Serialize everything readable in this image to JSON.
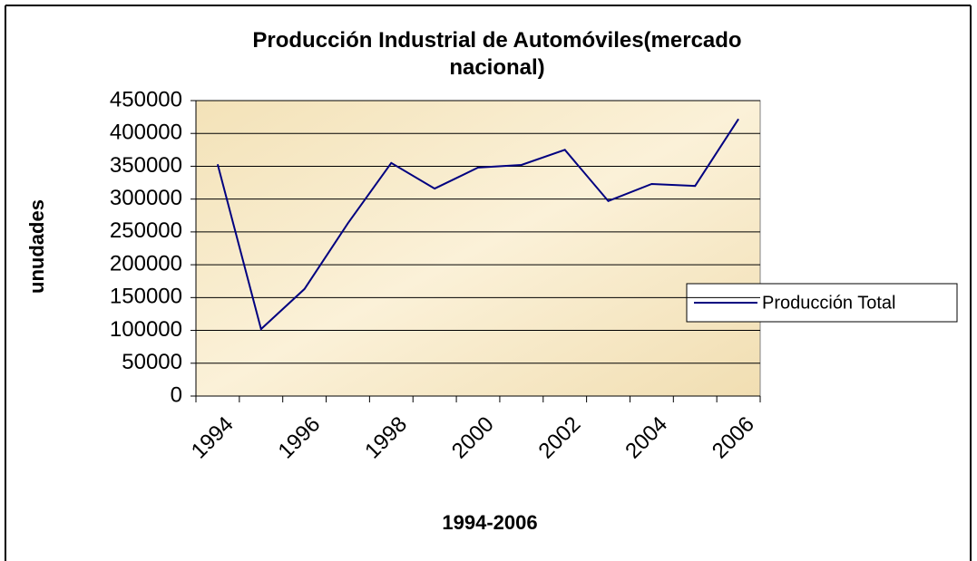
{
  "chart_data": {
    "type": "line",
    "title": "Producción Industrial de Automóviles(mercado nacional)",
    "x_label": "1994-2006",
    "y_label": "unudades",
    "categories": [
      "1994",
      null,
      "1996",
      null,
      "1998",
      null,
      "2000",
      null,
      "2002",
      null,
      "2004",
      null,
      "2006"
    ],
    "series": [
      {
        "name": "Producción Total",
        "color": "#000080",
        "values": [
          353000,
          102000,
          163000,
          263000,
          355000,
          316000,
          348000,
          352000,
          375000,
          297000,
          323000,
          320000,
          422000
        ]
      }
    ],
    "ylim": [
      0,
      450000
    ],
    "yticks": [
      0,
      50000,
      100000,
      150000,
      200000,
      250000,
      300000,
      350000,
      400000,
      450000
    ],
    "grid": true,
    "legend": "right"
  }
}
